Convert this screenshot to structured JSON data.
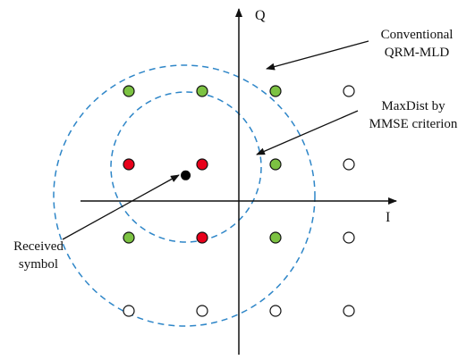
{
  "axes": {
    "x_label": "I",
    "y_label": "Q"
  },
  "annotations": {
    "conventional_line1": "Conventional",
    "conventional_line2": "QRM-MLD",
    "maxdist_line1": "MaxDist by",
    "maxdist_line2": "MMSE criterion",
    "received_line1": "Received",
    "received_line2": "symbol"
  },
  "colors": {
    "green": "#7cc242",
    "red": "#e8001a",
    "empty": "#ffffff",
    "received": "#000000",
    "circle": "#2e86c8",
    "stroke": "#111111"
  },
  "constellation": {
    "columns": [
      -3,
      -1,
      1,
      3
    ],
    "rows": [
      3,
      1,
      -1,
      -3
    ],
    "states": [
      [
        "green",
        "green",
        "green",
        "empty"
      ],
      [
        "red",
        "red",
        "green",
        "empty"
      ],
      [
        "green",
        "red",
        "green",
        "empty"
      ],
      [
        "empty",
        "empty",
        "empty",
        "empty"
      ]
    ]
  },
  "received_symbol": {
    "i": -1.45,
    "q": 0.7
  }
}
